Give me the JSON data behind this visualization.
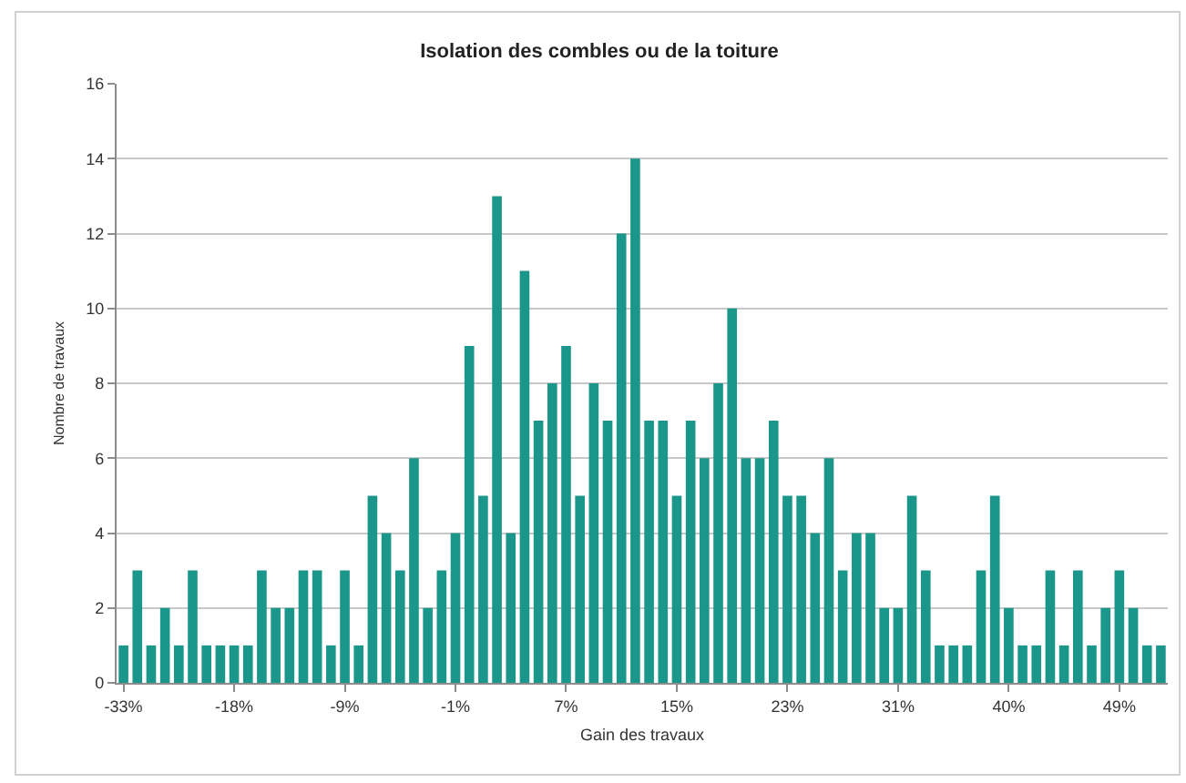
{
  "chart_data": {
    "type": "bar",
    "title": "Isolation des combles ou de la toiture",
    "xlabel": "Gain des travaux",
    "ylabel": "Nombre de travaux",
    "categories": [
      "-33%",
      null,
      null,
      null,
      null,
      null,
      null,
      null,
      "-18%",
      null,
      null,
      null,
      null,
      null,
      null,
      null,
      "-9%",
      null,
      null,
      null,
      null,
      null,
      null,
      null,
      "-1%",
      null,
      null,
      null,
      null,
      null,
      null,
      null,
      "7%",
      null,
      null,
      null,
      null,
      null,
      null,
      null,
      "15%",
      null,
      null,
      null,
      null,
      null,
      null,
      null,
      "23%",
      null,
      null,
      null,
      null,
      null,
      null,
      null,
      "31%",
      null,
      null,
      null,
      null,
      null,
      null,
      null,
      "40%",
      null,
      null,
      null,
      null,
      null,
      null,
      null,
      "49%",
      null,
      null,
      null
    ],
    "values": [
      1,
      3,
      1,
      2,
      1,
      3,
      1,
      1,
      1,
      1,
      3,
      2,
      2,
      3,
      3,
      1,
      3,
      1,
      5,
      4,
      3,
      6,
      2,
      3,
      4,
      9,
      5,
      13,
      4,
      11,
      7,
      8,
      9,
      5,
      8,
      7,
      12,
      14,
      7,
      7,
      5,
      7,
      6,
      8,
      10,
      6,
      6,
      7,
      5,
      5,
      4,
      6,
      3,
      4,
      4,
      2,
      2,
      5,
      3,
      1,
      1,
      1,
      3,
      5,
      2,
      1,
      1,
      3,
      1,
      3,
      1,
      2,
      3,
      2,
      1,
      1
    ],
    "color": "#1b968a",
    "ylim": [
      0,
      16
    ],
    "yticks": [
      0,
      2,
      4,
      6,
      8,
      10,
      12,
      14,
      16
    ],
    "grid": "y"
  }
}
